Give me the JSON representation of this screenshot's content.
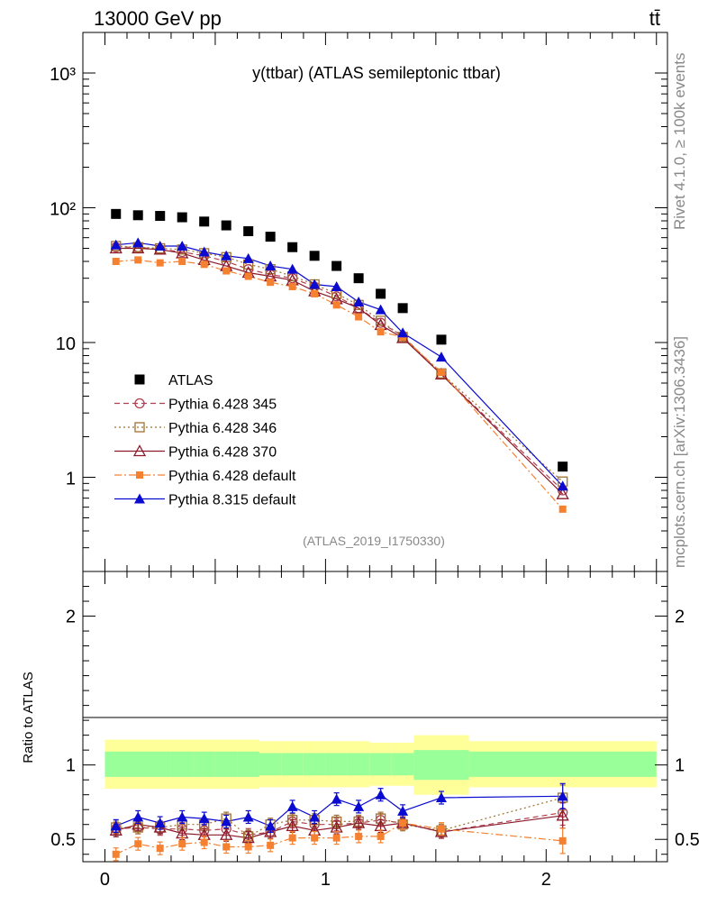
{
  "header": {
    "left": "13000 GeV pp",
    "right": "tt̄",
    "side_top": "Rivet 4.1.0, ≥ 100k events",
    "side_bottom": "mcplots.cern.ch [arXiv:1306.3436]"
  },
  "chart_data": [
    {
      "type": "scatter",
      "title": "y(ttbar) (ATLAS semileptonic ttbar)",
      "watermark": "(ATLAS_2019_I1750330)",
      "yscale": "log",
      "xlim": [
        -0.1,
        2.55
      ],
      "ylim": [
        0.2,
        2000
      ],
      "ytick_labels": [
        "1",
        "10",
        "10²",
        "10³"
      ],
      "x": [
        0.05,
        0.15,
        0.25,
        0.35,
        0.45,
        0.55,
        0.65,
        0.75,
        0.85,
        0.95,
        1.05,
        1.15,
        1.25,
        1.35,
        1.525,
        2.075
      ],
      "legend_position": "lower-left",
      "series": [
        {
          "name": "ATLAS",
          "marker": "square",
          "color": "#000000",
          "line": "none",
          "values": [
            90,
            88,
            87,
            85,
            79,
            74,
            67,
            61,
            51,
            44,
            37,
            30,
            23,
            18,
            10.5,
            1.2
          ]
        },
        {
          "name": "Pythia 6.428 345",
          "marker": "open-circle",
          "color": "#b04050",
          "line": "dashed",
          "values": [
            51,
            51,
            49,
            47,
            44,
            40,
            35,
            32,
            30,
            26,
            22,
            18,
            14,
            11.2,
            5.8,
            0.8
          ]
        },
        {
          "name": "Pythia 6.428 346",
          "marker": "open-square",
          "color": "#a07030",
          "line": "dotted",
          "values": [
            52,
            51,
            50,
            49,
            46,
            43,
            38,
            35,
            31,
            27,
            23,
            19,
            14.5,
            11,
            5.9,
            0.93
          ]
        },
        {
          "name": "Pythia 6.428 370",
          "marker": "open-triangle",
          "color": "#8b1a2a",
          "line": "solid",
          "values": [
            50,
            50,
            49,
            46,
            41,
            37,
            33,
            31,
            29,
            24,
            21,
            18,
            13.5,
            10.8,
            5.8,
            0.75
          ]
        },
        {
          "name": "Pythia 6.428 default",
          "marker": "filled-square",
          "color": "#f58030",
          "line": "dashdot",
          "values": [
            40,
            41,
            39,
            40,
            38,
            34,
            31,
            28,
            26,
            23,
            19,
            15.5,
            12,
            11,
            6,
            0.58
          ]
        },
        {
          "name": "Pythia 8.315 default",
          "marker": "filled-triangle",
          "color": "#0a0ad0",
          "line": "solid",
          "values": [
            53,
            55,
            52,
            52,
            47,
            44,
            42,
            37,
            35,
            27,
            26,
            20,
            17.5,
            11.8,
            7.8,
            0.86
          ]
        }
      ]
    },
    {
      "type": "scatter",
      "ylabel": "Ratio to ATLAS",
      "xlim": [
        -0.1,
        2.55
      ],
      "ylim": [
        0.35,
        2.3
      ],
      "ytick_labels": [
        "0.5",
        "1",
        "2"
      ],
      "xtick_labels": [
        "0",
        "1",
        "2"
      ],
      "x": [
        0.05,
        0.15,
        0.25,
        0.35,
        0.45,
        0.55,
        0.65,
        0.75,
        0.85,
        0.95,
        1.05,
        1.15,
        1.25,
        1.35,
        1.525,
        2.075
      ],
      "bands": {
        "bin_edges": [
          0.0,
          0.1,
          0.2,
          0.3,
          0.4,
          0.5,
          0.6,
          0.7,
          0.8,
          0.9,
          1.0,
          1.1,
          1.2,
          1.3,
          1.4,
          1.65,
          2.5
        ],
        "stat_low": [
          0.92,
          0.92,
          0.92,
          0.92,
          0.92,
          0.92,
          0.92,
          0.93,
          0.93,
          0.93,
          0.93,
          0.93,
          0.93,
          0.93,
          0.9,
          0.92
        ],
        "stat_high": [
          1.09,
          1.09,
          1.09,
          1.09,
          1.09,
          1.09,
          1.09,
          1.08,
          1.08,
          1.08,
          1.08,
          1.08,
          1.08,
          1.08,
          1.1,
          1.09
        ],
        "total_low": [
          0.84,
          0.84,
          0.84,
          0.84,
          0.84,
          0.84,
          0.84,
          0.85,
          0.85,
          0.85,
          0.85,
          0.85,
          0.86,
          0.86,
          0.8,
          0.85
        ],
        "total_high": [
          1.17,
          1.17,
          1.17,
          1.17,
          1.17,
          1.17,
          1.17,
          1.16,
          1.16,
          1.16,
          1.16,
          1.16,
          1.15,
          1.15,
          1.2,
          1.16
        ]
      },
      "series": [
        {
          "name": "Pythia 6.428 345",
          "values": [
            0.57,
            0.58,
            0.57,
            0.57,
            0.56,
            0.57,
            0.53,
            0.55,
            0.62,
            0.6,
            0.6,
            0.61,
            0.63,
            0.61,
            0.55,
            0.68
          ]
        },
        {
          "name": "Pythia 6.428 346",
          "values": [
            0.58,
            0.58,
            0.58,
            0.6,
            0.6,
            0.64,
            0.52,
            0.6,
            0.63,
            0.63,
            0.62,
            0.62,
            0.64,
            0.6,
            0.56,
            0.78
          ]
        },
        {
          "name": "Pythia 6.428 370",
          "values": [
            0.56,
            0.6,
            0.58,
            0.54,
            0.53,
            0.53,
            0.51,
            0.55,
            0.59,
            0.56,
            0.58,
            0.61,
            0.59,
            0.61,
            0.55,
            0.66
          ]
        },
        {
          "name": "Pythia 6.428 default",
          "values": [
            0.4,
            0.47,
            0.44,
            0.47,
            0.48,
            0.45,
            0.45,
            0.46,
            0.51,
            0.51,
            0.51,
            0.52,
            0.52,
            0.61,
            0.57,
            0.49
          ]
        },
        {
          "name": "Pythia 8.315 default",
          "values": [
            0.59,
            0.65,
            0.61,
            0.65,
            0.64,
            0.62,
            0.65,
            0.59,
            0.72,
            0.65,
            0.77,
            0.72,
            0.8,
            0.69,
            0.78,
            0.79
          ]
        }
      ]
    }
  ]
}
